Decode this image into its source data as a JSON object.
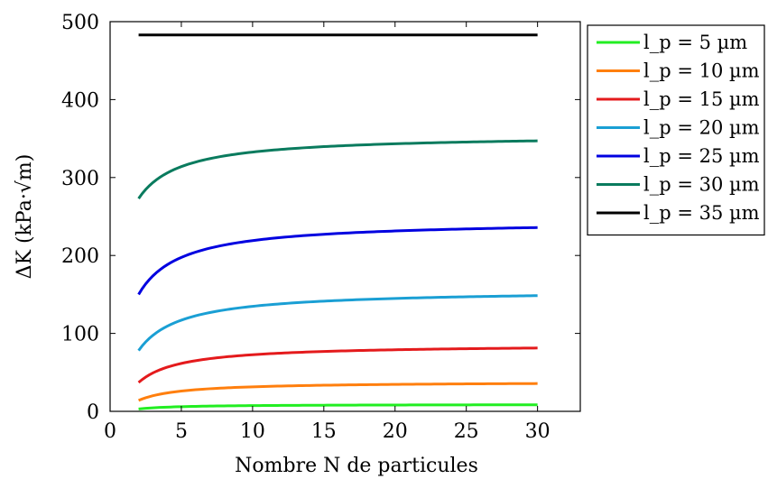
{
  "chart_data": {
    "type": "line",
    "xlabel": "Nombre N de particules",
    "ylabel": "ΔK (kPa·√m)",
    "xlim": [
      0,
      33
    ],
    "ylim": [
      0,
      500
    ],
    "xticks": [
      0,
      5,
      10,
      15,
      20,
      25,
      30
    ],
    "yticks": [
      0,
      100,
      200,
      300,
      400,
      500
    ],
    "grid": false,
    "legend_position": "outside-right",
    "series": [
      {
        "name": "l_p = 5 µm",
        "color": "#22ee22",
        "asymptote": 9,
        "start": 3,
        "constant": false
      },
      {
        "name": "l_p = 10 µm",
        "color": "#ff7f0e",
        "asymptote": 38,
        "start": 14,
        "constant": false
      },
      {
        "name": "l_p = 15 µm",
        "color": "#e41a1c",
        "asymptote": 86,
        "start": 37,
        "constant": false
      },
      {
        "name": "l_p = 20 µm",
        "color": "#1a9fd4",
        "asymptote": 156,
        "start": 78,
        "constant": false
      },
      {
        "name": "l_p = 25 µm",
        "color": "#0000e0",
        "asymptote": 245,
        "start": 150,
        "constant": false
      },
      {
        "name": "l_p = 30 µm",
        "color": "#0a7b5e",
        "asymptote": 355,
        "start": 273,
        "constant": false
      },
      {
        "name": "l_p = 35 µm",
        "color": "#000000",
        "asymptote": 483,
        "start": 483,
        "constant": true
      }
    ],
    "x_range": [
      2,
      30
    ]
  }
}
